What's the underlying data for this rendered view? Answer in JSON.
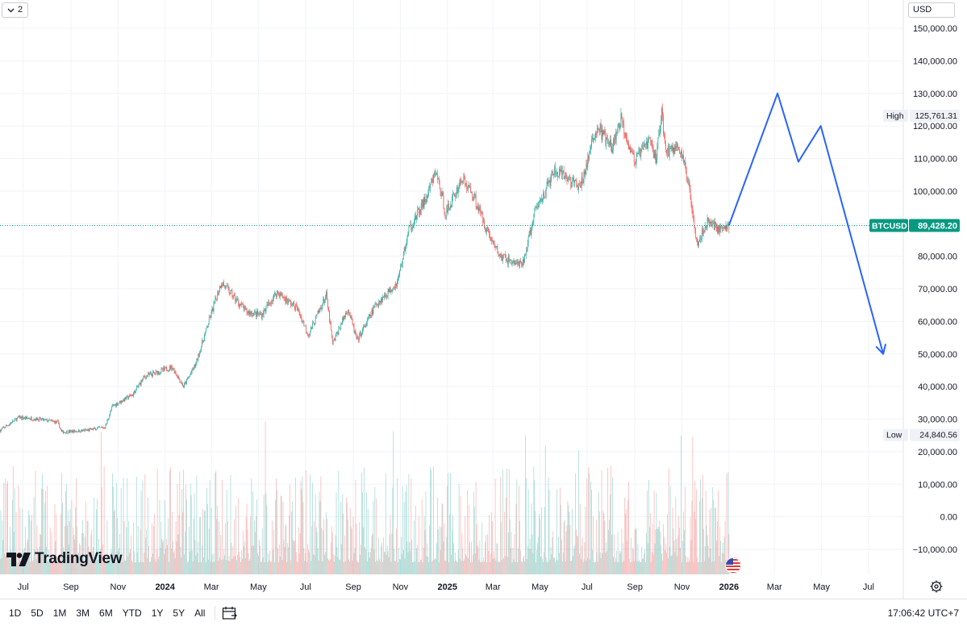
{
  "toolbar": {
    "collapse_label": "2",
    "currency": "USD"
  },
  "brand": {
    "name": "TradingView"
  },
  "time_ranges": [
    "1D",
    "5D",
    "1M",
    "3M",
    "6M",
    "YTD",
    "1Y",
    "5Y",
    "All"
  ],
  "clock": "17:06:42 UTC+7",
  "colors": {
    "up": "#26a69a",
    "down": "#ef5350",
    "projection": "#2962ff",
    "badge": "#089981",
    "grid": "#f0f3fa"
  },
  "chart_data": {
    "type": "candlestick",
    "symbol": "BTCUSD",
    "last_price": 89428.2,
    "last_price_label": "89,428.20",
    "high": {
      "label": "High",
      "value": 125761.31,
      "text": "125,761.31"
    },
    "low": {
      "label": "Low",
      "value": 24840.56,
      "text": "24,840.56"
    },
    "ylim": [
      -20000,
      155000
    ],
    "y_ticks": [
      150000,
      140000,
      130000,
      120000,
      110000,
      100000,
      90000,
      80000,
      70000,
      60000,
      50000,
      40000,
      30000,
      20000,
      10000,
      0,
      -10000
    ],
    "y_tick_labels": [
      "150,000.00",
      "140,000.00",
      "130,000.00",
      "120,000.00",
      "110,000.00",
      "100,000.00",
      "",
      "80,000.00",
      "70,000.00",
      "60,000.00",
      "50,000.00",
      "40,000.00",
      "30,000.00",
      "20,000.00",
      "10,000.00",
      "0.00",
      "−10,000.00"
    ],
    "x_range": [
      "2023-06-01",
      "2026-08-15"
    ],
    "x_ticks": [
      {
        "date": "2023-07-01",
        "label": "Jul",
        "bold": false
      },
      {
        "date": "2023-09-01",
        "label": "Sep",
        "bold": false
      },
      {
        "date": "2023-11-01",
        "label": "Nov",
        "bold": false
      },
      {
        "date": "2024-01-01",
        "label": "2024",
        "bold": true
      },
      {
        "date": "2024-03-01",
        "label": "Mar",
        "bold": false
      },
      {
        "date": "2024-05-01",
        "label": "May",
        "bold": false
      },
      {
        "date": "2024-07-01",
        "label": "Jul",
        "bold": false
      },
      {
        "date": "2024-09-01",
        "label": "Sep",
        "bold": false
      },
      {
        "date": "2024-11-01",
        "label": "Nov",
        "bold": false
      },
      {
        "date": "2025-01-01",
        "label": "2025",
        "bold": true
      },
      {
        "date": "2025-03-01",
        "label": "Mar",
        "bold": false
      },
      {
        "date": "2025-05-01",
        "label": "May",
        "bold": false
      },
      {
        "date": "2025-07-01",
        "label": "Jul",
        "bold": false
      },
      {
        "date": "2025-09-01",
        "label": "Sep",
        "bold": false
      },
      {
        "date": "2025-11-01",
        "label": "Nov",
        "bold": false
      },
      {
        "date": "2026-01-01",
        "label": "2026",
        "bold": true
      },
      {
        "date": "2026-03-01",
        "label": "Mar",
        "bold": false
      },
      {
        "date": "2026-05-01",
        "label": "May",
        "bold": false
      },
      {
        "date": "2026-07-01",
        "label": "Jul",
        "bold": false
      }
    ],
    "price_keypoints": [
      [
        "2023-06-01",
        26500
      ],
      [
        "2023-06-25",
        30500
      ],
      [
        "2023-07-20",
        30000
      ],
      [
        "2023-08-15",
        29000
      ],
      [
        "2023-08-20",
        26000
      ],
      [
        "2023-09-20",
        26500
      ],
      [
        "2023-10-15",
        27500
      ],
      [
        "2023-10-25",
        34000
      ],
      [
        "2023-11-20",
        37500
      ],
      [
        "2023-12-05",
        43000
      ],
      [
        "2024-01-10",
        46000
      ],
      [
        "2024-01-25",
        40000
      ],
      [
        "2024-02-10",
        47000
      ],
      [
        "2024-02-28",
        61000
      ],
      [
        "2024-03-14",
        72000
      ],
      [
        "2024-04-15",
        63000
      ],
      [
        "2024-05-05",
        62000
      ],
      [
        "2024-05-25",
        69000
      ],
      [
        "2024-06-20",
        64000
      ],
      [
        "2024-07-05",
        56000
      ],
      [
        "2024-07-28",
        68000
      ],
      [
        "2024-08-05",
        53000
      ],
      [
        "2024-08-25",
        64000
      ],
      [
        "2024-09-06",
        54000
      ],
      [
        "2024-09-30",
        65000
      ],
      [
        "2024-10-28",
        72000
      ],
      [
        "2024-11-12",
        88000
      ],
      [
        "2024-12-05",
        98000
      ],
      [
        "2024-12-17",
        106000
      ],
      [
        "2024-12-30",
        93000
      ],
      [
        "2025-01-20",
        104000
      ],
      [
        "2025-02-05",
        98000
      ],
      [
        "2025-02-25",
        86000
      ],
      [
        "2025-03-10",
        80000
      ],
      [
        "2025-04-08",
        77000
      ],
      [
        "2025-04-25",
        94000
      ],
      [
        "2025-05-20",
        106000
      ],
      [
        "2025-06-05",
        104000
      ],
      [
        "2025-06-22",
        101000
      ],
      [
        "2025-07-14",
        120000
      ],
      [
        "2025-08-02",
        113000
      ],
      [
        "2025-08-14",
        122000
      ],
      [
        "2025-09-01",
        109000
      ],
      [
        "2025-09-20",
        116000
      ],
      [
        "2025-09-28",
        110000
      ],
      [
        "2025-10-06",
        124000
      ],
      [
        "2025-10-11",
        112000
      ],
      [
        "2025-10-28",
        114000
      ],
      [
        "2025-11-10",
        102000
      ],
      [
        "2025-11-21",
        84000
      ],
      [
        "2025-12-05",
        91000
      ],
      [
        "2025-12-22",
        88000
      ],
      [
        "2026-01-01",
        89428
      ]
    ],
    "volume_note": "volume histogram with upward/downward colored bars",
    "projection": {
      "type": "line",
      "color": "#2962ff",
      "points": [
        [
          "2026-01-01",
          89500
        ],
        [
          "2026-03-05",
          130000
        ],
        [
          "2026-04-01",
          109000
        ],
        [
          "2026-04-30",
          120000
        ],
        [
          "2026-07-20",
          50000
        ]
      ]
    }
  }
}
